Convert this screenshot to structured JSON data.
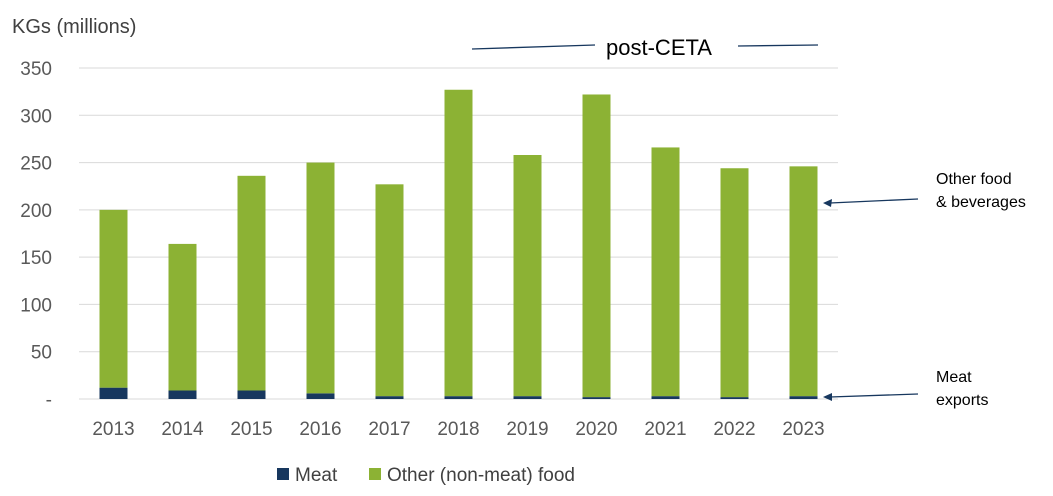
{
  "chart_data": {
    "type": "bar",
    "stacked": true,
    "ylabel": "KGs (millions)",
    "ylim": [
      0,
      350
    ],
    "yticks": [
      0,
      50,
      100,
      150,
      200,
      250,
      300,
      350
    ],
    "ytick_labels": [
      "-",
      "50",
      "100",
      "150",
      "200",
      "250",
      "300",
      "350"
    ],
    "grid": true,
    "categories": [
      "2013",
      "2014",
      "2015",
      "2016",
      "2017",
      "2018",
      "2019",
      "2020",
      "2021",
      "2022",
      "2023"
    ],
    "series": [
      {
        "name": "Meat",
        "color": "#17375e",
        "values": [
          12,
          9,
          9,
          6,
          3,
          3,
          3,
          2,
          3,
          2,
          3
        ]
      },
      {
        "name": "Other (non-meat) food",
        "color": "#8cb234",
        "values": [
          188,
          155,
          227,
          244,
          224,
          324,
          255,
          320,
          263,
          242,
          243
        ]
      }
    ],
    "legend_position": "bottom",
    "annotations": {
      "post_ceta": "post-CETA",
      "other_food_line1": "Other food",
      "other_food_line2": "& beverages",
      "meat_line1": "Meat",
      "meat_line2": "exports"
    }
  }
}
